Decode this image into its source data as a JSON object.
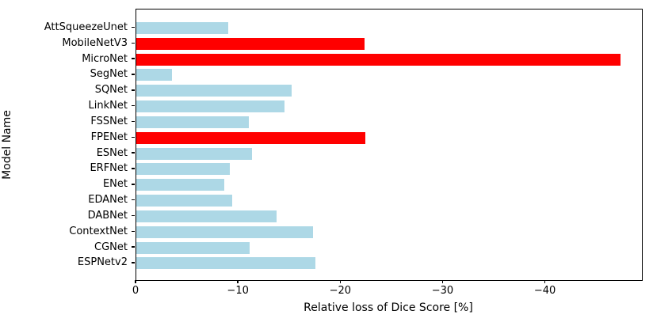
{
  "chart_data": {
    "type": "bar",
    "orientation": "horizontal",
    "title": "",
    "xlabel": "Relative loss of Dice Score [%]",
    "ylabel": "Model Name",
    "xlim": [
      0,
      -49.4
    ],
    "xticks": [
      0,
      -10,
      -20,
      -30,
      -40
    ],
    "xtick_labels": [
      "0",
      "−10",
      "−20",
      "−30",
      "−40"
    ],
    "grid": false,
    "legend": null,
    "colors": {
      "default": "#add8e6",
      "highlight": "#ff0000",
      "axis": "#000000"
    },
    "bars": [
      {
        "label": "AttSqueezeUnet",
        "value": -9.0,
        "highlight": false
      },
      {
        "label": "MobileNetV3",
        "value": -22.3,
        "highlight": true
      },
      {
        "label": "MicroNet",
        "value": -47.3,
        "highlight": true
      },
      {
        "label": "SegNet",
        "value": -3.5,
        "highlight": false
      },
      {
        "label": "SQNet",
        "value": -15.2,
        "highlight": false
      },
      {
        "label": "LinkNet",
        "value": -14.5,
        "highlight": false
      },
      {
        "label": "FSSNet",
        "value": -11.0,
        "highlight": false
      },
      {
        "label": "FPENet",
        "value": -22.4,
        "highlight": true
      },
      {
        "label": "ESNet",
        "value": -11.3,
        "highlight": false
      },
      {
        "label": "ERFNet",
        "value": -9.1,
        "highlight": false
      },
      {
        "label": "ENet",
        "value": -8.6,
        "highlight": false
      },
      {
        "label": "EDANet",
        "value": -9.4,
        "highlight": false
      },
      {
        "label": "DABNet",
        "value": -13.7,
        "highlight": false
      },
      {
        "label": "ContextNet",
        "value": -17.3,
        "highlight": false
      },
      {
        "label": "CGNet",
        "value": -11.1,
        "highlight": false
      },
      {
        "label": "ESPNetv2",
        "value": -17.5,
        "highlight": false
      }
    ]
  }
}
